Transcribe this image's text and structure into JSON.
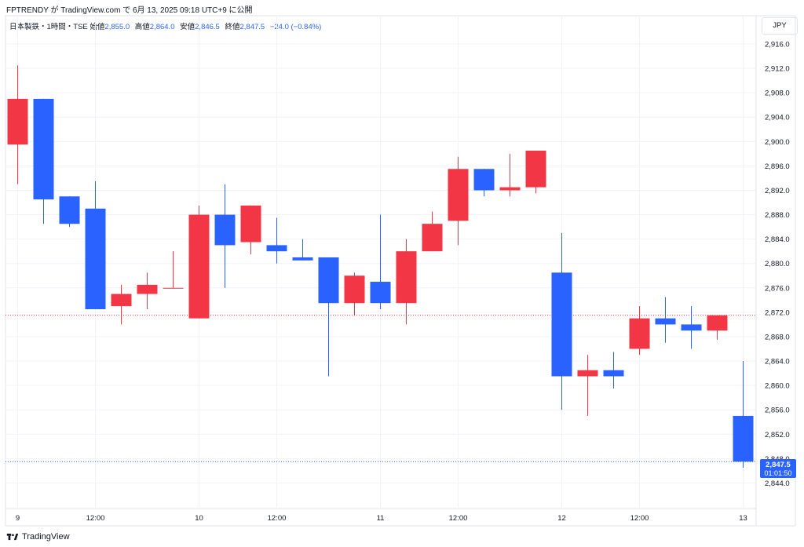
{
  "header": {
    "publisher_line": "FPTRENDY が TradingView.com で 6月 13, 2025 09:18 UTC+9 に公開",
    "symbol": "日本製鉄・1時間・TSE",
    "open_label": "始値",
    "open_value": "2,855.0",
    "high_label": "高値",
    "high_value": "2,864.0",
    "low_label": "安値",
    "low_value": "2,846.5",
    "close_label": "終値",
    "close_value": "2,847.5",
    "change": "−24.0 (−0.84%)",
    "currency": "JPY"
  },
  "price_tag": {
    "price": "2,847.5",
    "countdown": "01:01:50"
  },
  "brand": {
    "name": "TradingView",
    "icon": "tradingview-logo-icon"
  },
  "colors": {
    "up": "#f23645",
    "down": "#2962ff",
    "grid": "#f0f3fa",
    "prev_close_line": "#f23645",
    "last_price_line": "#2962ff"
  },
  "chart_data": {
    "type": "candlestick",
    "ylim": [
      2842,
      2918
    ],
    "y_ticks": [
      "2,844.0",
      "2,848.0",
      "2,852.0",
      "2,856.0",
      "2,860.0",
      "2,864.0",
      "2,868.0",
      "2,872.0",
      "2,876.0",
      "2,880.0",
      "2,884.0",
      "2,888.0",
      "2,892.0",
      "2,896.0",
      "2,900.0",
      "2,904.0",
      "2,908.0",
      "2,912.0",
      "2,916.0"
    ],
    "x_ticks": [
      {
        "index": 0,
        "label": "9"
      },
      {
        "index": 3,
        "label": "12:00"
      },
      {
        "index": 7,
        "label": "10"
      },
      {
        "index": 10,
        "label": "12:00"
      },
      {
        "index": 14,
        "label": "11"
      },
      {
        "index": 17,
        "label": "12:00"
      },
      {
        "index": 21,
        "label": "12"
      },
      {
        "index": 24,
        "label": "12:00"
      },
      {
        "index": 28,
        "label": "13"
      }
    ],
    "prev_close": 2871.5,
    "last_price": 2847.5,
    "candles": [
      {
        "o": 2899.5,
        "h": 2912.5,
        "l": 2893.0,
        "c": 2907.0
      },
      {
        "o": 2907.0,
        "h": 2907.0,
        "l": 2886.5,
        "c": 2890.5
      },
      {
        "o": 2891.0,
        "h": 2891.0,
        "l": 2886.0,
        "c": 2886.5
      },
      {
        "o": 2889.0,
        "h": 2893.5,
        "l": 2872.5,
        "c": 2872.5
      },
      {
        "o": 2873.0,
        "h": 2876.5,
        "l": 2870.0,
        "c": 2875.0
      },
      {
        "o": 2875.0,
        "h": 2878.5,
        "l": 2872.5,
        "c": 2876.5
      },
      {
        "o": 2876.0,
        "h": 2882.0,
        "l": 2876.0,
        "c": 2876.0
      },
      {
        "o": 2871.0,
        "h": 2889.5,
        "l": 2871.0,
        "c": 2888.0
      },
      {
        "o": 2888.0,
        "h": 2893.0,
        "l": 2876.0,
        "c": 2883.0
      },
      {
        "o": 2883.5,
        "h": 2889.5,
        "l": 2881.5,
        "c": 2889.5
      },
      {
        "o": 2883.0,
        "h": 2887.5,
        "l": 2880.0,
        "c": 2882.0
      },
      {
        "o": 2881.0,
        "h": 2884.0,
        "l": 2880.5,
        "c": 2880.5
      },
      {
        "o": 2881.0,
        "h": 2881.0,
        "l": 2861.5,
        "c": 2873.5
      },
      {
        "o": 2873.5,
        "h": 2878.5,
        "l": 2871.5,
        "c": 2878.0
      },
      {
        "o": 2877.0,
        "h": 2888.0,
        "l": 2872.5,
        "c": 2873.5
      },
      {
        "o": 2873.5,
        "h": 2884.0,
        "l": 2870.0,
        "c": 2882.0
      },
      {
        "o": 2882.0,
        "h": 2888.5,
        "l": 2882.0,
        "c": 2886.5
      },
      {
        "o": 2887.0,
        "h": 2897.5,
        "l": 2883.0,
        "c": 2895.5
      },
      {
        "o": 2895.5,
        "h": 2895.5,
        "l": 2891.0,
        "c": 2892.0
      },
      {
        "o": 2892.0,
        "h": 2898.0,
        "l": 2891.0,
        "c": 2892.5
      },
      {
        "o": 2892.5,
        "h": 2898.5,
        "l": 2891.5,
        "c": 2898.5
      },
      {
        "o": 2878.5,
        "h": 2885.0,
        "l": 2856.0,
        "c": 2861.5
      },
      {
        "o": 2861.5,
        "h": 2865.0,
        "l": 2855.0,
        "c": 2862.5
      },
      {
        "o": 2862.5,
        "h": 2865.5,
        "l": 2859.5,
        "c": 2861.5
      },
      {
        "o": 2866.0,
        "h": 2873.0,
        "l": 2865.0,
        "c": 2871.0
      },
      {
        "o": 2871.0,
        "h": 2874.5,
        "l": 2867.0,
        "c": 2870.0
      },
      {
        "o": 2870.0,
        "h": 2873.0,
        "l": 2866.0,
        "c": 2869.0
      },
      {
        "o": 2869.0,
        "h": 2871.5,
        "l": 2867.5,
        "c": 2871.5
      },
      {
        "o": 2855.0,
        "h": 2864.0,
        "l": 2846.5,
        "c": 2847.5
      }
    ]
  }
}
